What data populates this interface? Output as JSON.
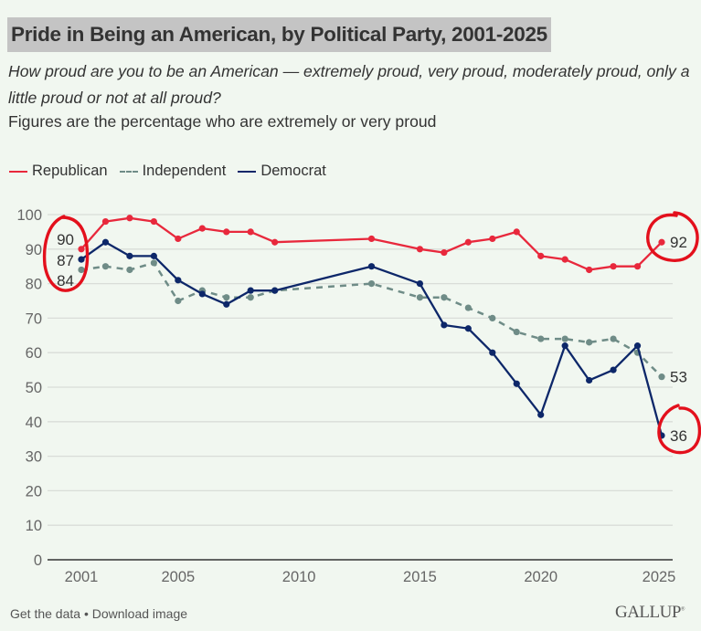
{
  "header": {
    "title": "Pride in Being an American, by Political Party, 2001-2025",
    "question": "How proud are you to be an American — extremely proud, very proud, moderately proud, only a little proud or not at all proud?",
    "note": "Figures are the percentage who are extremely or very proud"
  },
  "footer": {
    "get_data": "Get the data",
    "separator": " • ",
    "download": "Download image",
    "logo": "GALLUP",
    "logo_mark": "®"
  },
  "colors": {
    "background": "#f1f7f0",
    "republican": "#e8283c",
    "independent": "#6f8c87",
    "democrat": "#0d2769",
    "annotation": "#e3101c",
    "grid": "#d9ddd8",
    "axis": "#333333"
  },
  "chart_data": {
    "type": "line",
    "title": "Pride in Being an American, by Political Party, 2001-2025",
    "xlabel": "",
    "ylabel": "",
    "xlim": [
      2001,
      2025
    ],
    "ylim": [
      0,
      100
    ],
    "grid": true,
    "legend_position": "top-left",
    "x_ticks": [
      2001,
      2005,
      2010,
      2015,
      2020,
      2025
    ],
    "y_ticks": [
      0,
      10,
      20,
      30,
      40,
      50,
      60,
      70,
      80,
      90,
      100
    ],
    "series": [
      {
        "name": "Republican",
        "style": "solid",
        "color_key": "republican",
        "points": [
          [
            2001,
            90
          ],
          [
            2002,
            98
          ],
          [
            2003,
            99
          ],
          [
            2004,
            98
          ],
          [
            2005,
            93
          ],
          [
            2006,
            96
          ],
          [
            2007,
            95
          ],
          [
            2008,
            95
          ],
          [
            2009,
            92
          ],
          [
            2013,
            93
          ],
          [
            2015,
            90
          ],
          [
            2016,
            89
          ],
          [
            2017,
            92
          ],
          [
            2018,
            93
          ],
          [
            2019,
            95
          ],
          [
            2020,
            88
          ],
          [
            2021,
            87
          ],
          [
            2022,
            84
          ],
          [
            2023,
            85
          ],
          [
            2024,
            85
          ],
          [
            2025,
            92
          ]
        ],
        "start_label": "90",
        "end_label": "92"
      },
      {
        "name": "Independent",
        "style": "dashed",
        "color_key": "independent",
        "points": [
          [
            2001,
            84
          ],
          [
            2002,
            85
          ],
          [
            2003,
            84
          ],
          [
            2004,
            86
          ],
          [
            2005,
            75
          ],
          [
            2006,
            78
          ],
          [
            2007,
            76
          ],
          [
            2008,
            76
          ],
          [
            2009,
            78
          ],
          [
            2013,
            80
          ],
          [
            2015,
            76
          ],
          [
            2016,
            76
          ],
          [
            2017,
            73
          ],
          [
            2018,
            70
          ],
          [
            2019,
            66
          ],
          [
            2020,
            64
          ],
          [
            2021,
            64
          ],
          [
            2022,
            63
          ],
          [
            2023,
            64
          ],
          [
            2024,
            60
          ],
          [
            2025,
            53
          ]
        ],
        "start_label": "84",
        "end_label": "53"
      },
      {
        "name": "Democrat",
        "style": "solid",
        "color_key": "democrat",
        "points": [
          [
            2001,
            87
          ],
          [
            2002,
            92
          ],
          [
            2003,
            88
          ],
          [
            2004,
            88
          ],
          [
            2005,
            81
          ],
          [
            2006,
            77
          ],
          [
            2007,
            74
          ],
          [
            2008,
            78
          ],
          [
            2009,
            78
          ],
          [
            2013,
            85
          ],
          [
            2015,
            80
          ],
          [
            2016,
            68
          ],
          [
            2017,
            67
          ],
          [
            2018,
            60
          ],
          [
            2019,
            51
          ],
          [
            2020,
            42
          ],
          [
            2021,
            62
          ],
          [
            2022,
            52
          ],
          [
            2023,
            55
          ],
          [
            2024,
            62
          ],
          [
            2025,
            36
          ]
        ],
        "start_label": "87",
        "end_label": "36"
      }
    ],
    "annotations": [
      {
        "type": "hand-drawn-circle",
        "around": "2001 start labels 90, 87, 84"
      },
      {
        "type": "hand-drawn-circle",
        "around": "Republican 2025 label 92"
      },
      {
        "type": "hand-drawn-circle",
        "around": "Democrat 2025 label 36"
      }
    ]
  }
}
